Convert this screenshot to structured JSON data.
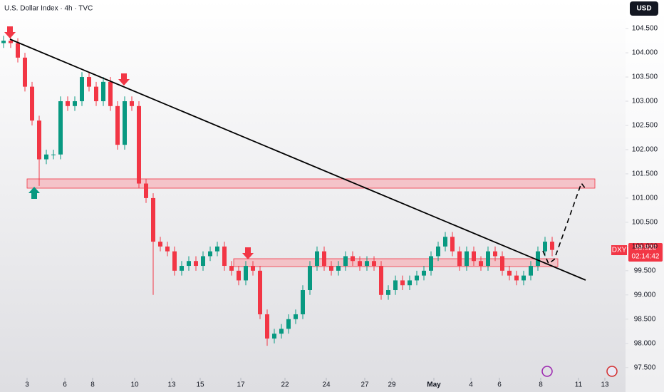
{
  "chart_data": {
    "type": "candlestick",
    "title": "U.S. Dollar Index · 4h · TVC",
    "currency": "USD",
    "symbol": "DXY",
    "last_price": "99.926",
    "countdown": "02:14:42",
    "up_color": "#089981",
    "down_color": "#f23645",
    "x": [
      0,
      1,
      2,
      3,
      4,
      5,
      6,
      7,
      8,
      9,
      10,
      11,
      12,
      13,
      14,
      15,
      16,
      17,
      18,
      19,
      20,
      21,
      22,
      23,
      24,
      25,
      26,
      27,
      28,
      29,
      30,
      31,
      32,
      33,
      34,
      35,
      36,
      37,
      38,
      39,
      40,
      41,
      42,
      43,
      44,
      45,
      46,
      47,
      48,
      49,
      50,
      51,
      52,
      53,
      54,
      55,
      56,
      57,
      58,
      59,
      60,
      61,
      62,
      63,
      64,
      65,
      66,
      67,
      68,
      69,
      70,
      71,
      72,
      73,
      74,
      75,
      76,
      77
    ],
    "open": [
      104.2,
      104.25,
      104.2,
      103.9,
      103.3,
      102.6,
      101.8,
      101.9,
      101.9,
      103.0,
      102.9,
      103.0,
      103.5,
      103.3,
      103.0,
      103.4,
      102.9,
      102.1,
      103.0,
      102.9,
      101.3,
      101.0,
      100.1,
      100.0,
      99.9,
      99.5,
      99.6,
      99.7,
      99.6,
      99.8,
      99.9,
      100.0,
      99.6,
      99.5,
      99.3,
      99.6,
      99.5,
      98.6,
      98.1,
      98.2,
      98.3,
      98.5,
      98.6,
      99.1,
      99.6,
      99.9,
      99.6,
      99.5,
      99.6,
      99.8,
      99.7,
      99.6,
      99.7,
      99.6,
      99.0,
      99.1,
      99.3,
      99.2,
      99.3,
      99.4,
      99.5,
      99.8,
      100.0,
      100.2,
      99.9,
      99.6,
      99.9,
      99.7,
      99.6,
      99.9,
      99.8,
      99.5,
      99.4,
      99.3,
      99.4,
      99.6,
      99.9,
      100.1
    ],
    "high": [
      104.35,
      104.35,
      104.3,
      104.0,
      103.4,
      102.7,
      102.0,
      102.0,
      103.1,
      103.1,
      103.1,
      103.6,
      103.6,
      103.4,
      103.5,
      103.5,
      103.0,
      103.1,
      103.1,
      103.0,
      101.4,
      101.1,
      100.2,
      100.1,
      100.0,
      99.7,
      99.8,
      99.8,
      99.9,
      100.0,
      100.1,
      100.1,
      99.7,
      99.6,
      99.7,
      99.7,
      99.6,
      98.7,
      98.3,
      98.4,
      98.6,
      98.7,
      99.2,
      99.7,
      100.0,
      100.0,
      99.7,
      99.7,
      99.9,
      99.9,
      99.8,
      99.8,
      99.8,
      99.7,
      99.2,
      99.4,
      99.4,
      99.4,
      99.5,
      99.6,
      99.9,
      100.1,
      100.3,
      100.3,
      100.0,
      100.0,
      100.0,
      99.8,
      100.0,
      100.0,
      99.9,
      99.6,
      99.5,
      99.5,
      99.7,
      100.0,
      100.2,
      100.2
    ],
    "low": [
      104.1,
      104.1,
      103.8,
      103.2,
      102.5,
      101.25,
      101.7,
      101.8,
      101.8,
      102.8,
      102.8,
      102.9,
      103.2,
      102.9,
      102.9,
      102.8,
      102.0,
      102.0,
      102.8,
      101.2,
      100.9,
      99.0,
      99.9,
      99.8,
      99.4,
      99.4,
      99.5,
      99.5,
      99.5,
      99.7,
      99.8,
      99.5,
      99.4,
      99.2,
      99.2,
      99.4,
      98.5,
      97.95,
      98.0,
      98.1,
      98.2,
      98.4,
      98.5,
      99.0,
      99.5,
      99.5,
      99.4,
      99.4,
      99.5,
      99.6,
      99.5,
      99.5,
      99.5,
      98.9,
      98.9,
      99.0,
      99.1,
      99.1,
      99.2,
      99.3,
      99.4,
      99.7,
      99.9,
      99.8,
      99.5,
      99.5,
      99.6,
      99.5,
      99.5,
      99.7,
      99.4,
      99.3,
      99.2,
      99.2,
      99.3,
      99.5,
      99.8,
      99.8
    ],
    "close": [
      104.25,
      104.2,
      103.9,
      103.3,
      102.6,
      101.8,
      101.9,
      101.9,
      103.0,
      102.9,
      103.0,
      103.5,
      103.3,
      103.0,
      103.4,
      102.9,
      102.1,
      103.0,
      102.9,
      101.3,
      101.0,
      100.1,
      100.0,
      99.9,
      99.5,
      99.6,
      99.7,
      99.6,
      99.8,
      99.9,
      100.0,
      99.6,
      99.5,
      99.3,
      99.6,
      99.5,
      98.6,
      98.1,
      98.2,
      98.3,
      98.5,
      98.6,
      99.1,
      99.6,
      99.9,
      99.6,
      99.5,
      99.6,
      99.8,
      99.7,
      99.6,
      99.7,
      99.6,
      99.0,
      99.1,
      99.3,
      99.2,
      99.3,
      99.4,
      99.5,
      99.8,
      100.0,
      100.2,
      99.9,
      99.6,
      99.9,
      99.7,
      99.6,
      99.9,
      99.8,
      99.5,
      99.4,
      99.3,
      99.4,
      99.6,
      99.9,
      100.1,
      99.93
    ],
    "xlim": [
      -0.5,
      87.3
    ],
    "xticks": [
      {
        "value": 3.3,
        "label": "3"
      },
      {
        "value": 8.6,
        "label": "6"
      },
      {
        "value": 12.5,
        "label": "8"
      },
      {
        "value": 18.4,
        "label": "10"
      },
      {
        "value": 23.6,
        "label": "13"
      },
      {
        "value": 27.6,
        "label": "15"
      },
      {
        "value": 33.3,
        "label": "17"
      },
      {
        "value": 39.5,
        "label": "22"
      },
      {
        "value": 45.3,
        "label": "24"
      },
      {
        "value": 50.7,
        "label": "27"
      },
      {
        "value": 54.5,
        "label": "29"
      },
      {
        "value": 60.4,
        "label": "May"
      },
      {
        "value": 65.6,
        "label": "4"
      },
      {
        "value": 69.6,
        "label": "6"
      },
      {
        "value": 75.4,
        "label": "8"
      },
      {
        "value": 80.7,
        "label": "11"
      },
      {
        "value": 84.4,
        "label": "13"
      }
    ],
    "ylim": [
      97.29,
      105.09
    ],
    "yticks": [
      {
        "value": 97.5,
        "label": "97.500"
      },
      {
        "value": 98,
        "label": "98.000"
      },
      {
        "value": 98.5,
        "label": "98.500"
      },
      {
        "value": 99,
        "label": "99.000"
      },
      {
        "value": 99.5,
        "label": "99.500"
      },
      {
        "value": 100,
        "label": "100.000"
      },
      {
        "value": 100.5,
        "label": "100.500"
      },
      {
        "value": 101,
        "label": "101.000"
      },
      {
        "value": 101.5,
        "label": "101.500"
      },
      {
        "value": 102,
        "label": "102.000"
      },
      {
        "value": 102.5,
        "label": "102.500"
      },
      {
        "value": 103,
        "label": "103.000"
      },
      {
        "value": 103.5,
        "label": "103.500"
      },
      {
        "value": 104,
        "label": "104.000"
      },
      {
        "value": 104.5,
        "label": "104.500"
      }
    ]
  }
}
